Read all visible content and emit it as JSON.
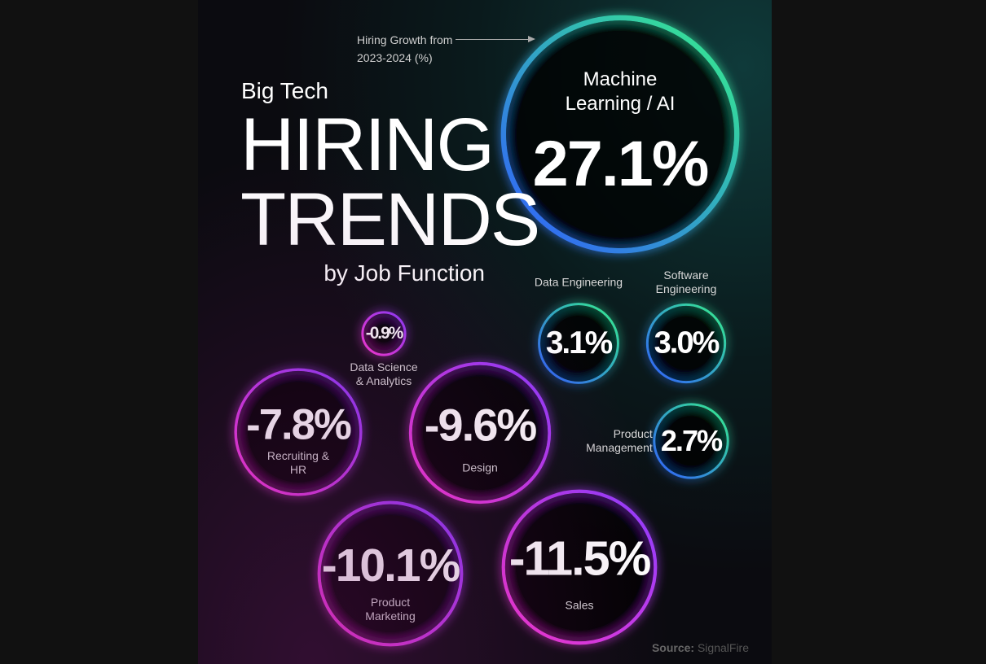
{
  "chart_data": {
    "type": "bubble",
    "title": {
      "kicker": "Big Tech",
      "main": "HIRING TRENDS",
      "sub": "by Job Function"
    },
    "annotation": "Hiring Growth from 2023-2024 (%)",
    "categories": [
      "Machine Learning / AI",
      "Data Engineering",
      "Software Engineering",
      "Product Management",
      "Data Science & Analytics",
      "Recruiting & HR",
      "Design",
      "Product Marketing",
      "Sales"
    ],
    "values": [
      27.1,
      3.1,
      3.0,
      2.7,
      -0.9,
      -7.8,
      -9.6,
      -10.1,
      -11.5
    ],
    "value_labels": [
      "27.1%",
      "3.1%",
      "3.0%",
      "2.7%",
      "-0.9%",
      "-7.8%",
      "-9.6%",
      "-10.1%",
      "-11.5%"
    ],
    "positive_colors": [
      "#2f5bff",
      "#35f08a"
    ],
    "negative_colors": [
      "#ff3ad8",
      "#8a3cff"
    ],
    "source": {
      "label": "Source:",
      "name": "SignalFire"
    }
  }
}
